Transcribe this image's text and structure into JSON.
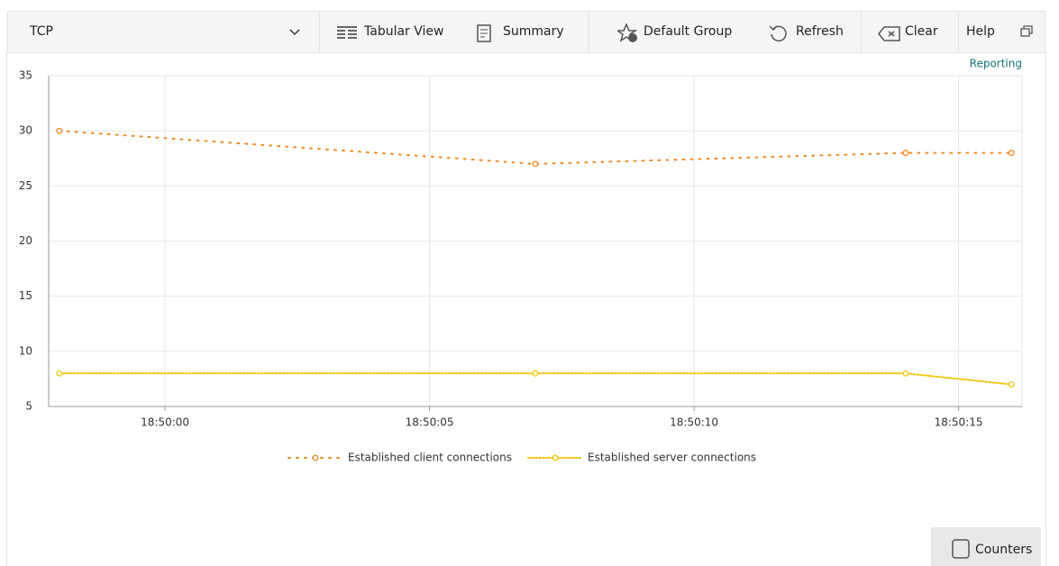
{
  "toolbar": {
    "dropdown": "TCP",
    "buttons": [
      "Tabular View",
      "Summary",
      "Default Group",
      "Refresh",
      "Clear",
      "Help"
    ]
  },
  "link": "Reporting",
  "counters": "Counters",
  "chart_data": {
    "type": "line",
    "x": [
      "18:49:58",
      "18:50:07",
      "18:50:14",
      "18:50:16"
    ],
    "xlim": [
      "18:49:57.8",
      "18:50:16.2"
    ],
    "xticks": [
      "18:50:00",
      "18:50:05",
      "18:50:10",
      "18:50:15"
    ],
    "ylim": [
      5,
      35
    ],
    "yticks": [
      5,
      10,
      15,
      20,
      25,
      30,
      35
    ],
    "grid": true,
    "legend": "bottom",
    "series": [
      {
        "name": "Established client connections",
        "color": "#f08a24",
        "values": [
          30,
          27,
          28,
          28
        ]
      },
      {
        "name": "Established server connections",
        "color": "#f2c40f",
        "values": [
          8,
          8,
          8,
          7
        ]
      }
    ]
  }
}
